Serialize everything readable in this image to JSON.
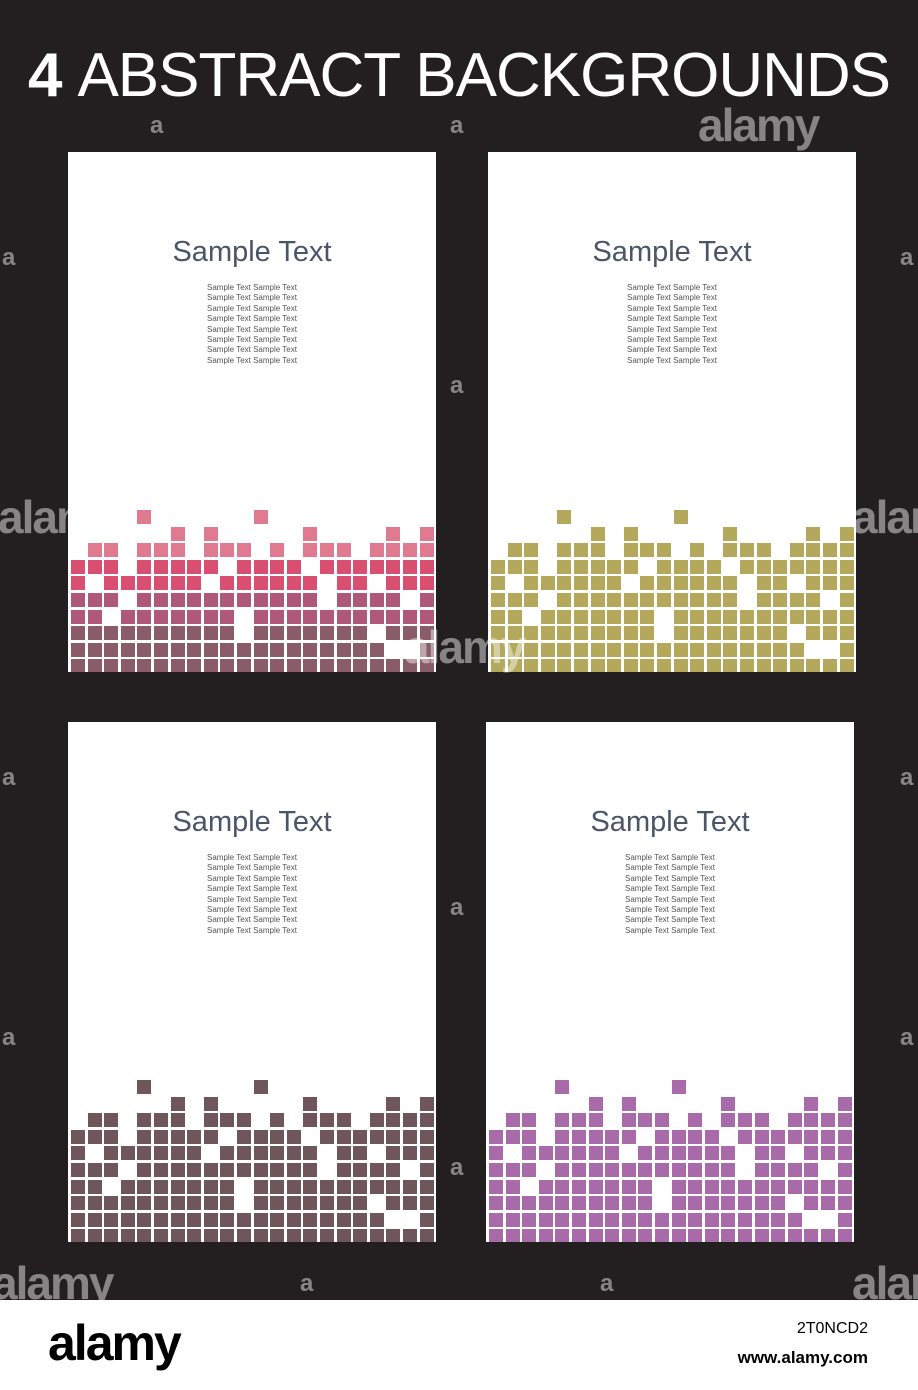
{
  "title": {
    "number": "4",
    "text": "ABSTRACT BACKGROUNDS"
  },
  "cards": [
    {
      "heading": "Sample Text",
      "lines": [
        "Sample Text Sample Text",
        "Sample Text Sample Text",
        "Sample Text Sample Text",
        "Sample Text Sample Text",
        "Sample Text Sample Text",
        "Sample Text Sample Text",
        "Sample Text Sample Text",
        "Sample Text Sample Text"
      ],
      "colors": [
        "#e07a90",
        "#d94f72",
        "#b0587a",
        "#8a5b68"
      ]
    },
    {
      "heading": "Sample Text",
      "lines": [
        "Sample Text Sample Text",
        "Sample Text Sample Text",
        "Sample Text Sample Text",
        "Sample Text Sample Text",
        "Sample Text Sample Text",
        "Sample Text Sample Text",
        "Sample Text Sample Text",
        "Sample Text Sample Text"
      ],
      "colors": [
        "#b3a85c",
        "#b3a85c",
        "#b3a85c",
        "#b3a85c"
      ]
    },
    {
      "heading": "Sample Text",
      "lines": [
        "Sample Text Sample Text",
        "Sample Text Sample Text",
        "Sample Text Sample Text",
        "Sample Text Sample Text",
        "Sample Text Sample Text",
        "Sample Text Sample Text",
        "Sample Text Sample Text",
        "Sample Text Sample Text"
      ],
      "colors": [
        "#6e565b",
        "#6e565b",
        "#6e565b",
        "#6e565b"
      ]
    },
    {
      "heading": "Sample Text",
      "lines": [
        "Sample Text Sample Text",
        "Sample Text Sample Text",
        "Sample Text Sample Text",
        "Sample Text Sample Text",
        "Sample Text Sample Text",
        "Sample Text Sample Text",
        "Sample Text Sample Text",
        "Sample Text Sample Text"
      ],
      "colors": [
        "#a86aa8",
        "#a86aa8",
        "#a86aa8",
        "#a86aa8"
      ]
    }
  ],
  "watermark": {
    "word": "alamy",
    "letter": "a"
  },
  "footer": {
    "logo": "alamy",
    "image_id": "2T0NCD2",
    "site": "www.alamy.com"
  },
  "colors": {
    "background": "#231f20",
    "card": "#ffffff",
    "heading": "#4a5568"
  }
}
